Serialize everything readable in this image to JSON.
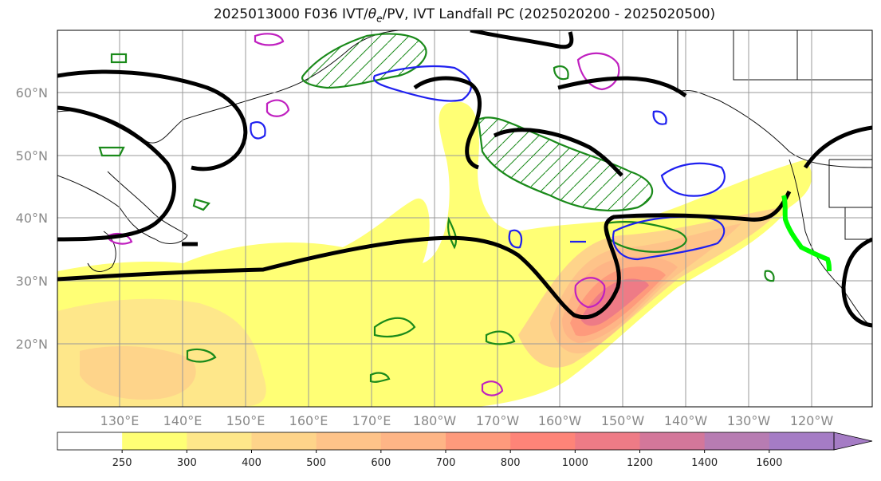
{
  "title": {
    "prefix": "2025013000 F036 IVT/",
    "theta": "θ",
    "theta_sub": "e",
    "suffix": "/PV, IVT Landfall PC (2025020200 - 2025020500)"
  },
  "map": {
    "lat_labels": [
      "60°N",
      "50°N",
      "40°N",
      "30°N",
      "20°N"
    ],
    "lon_labels": [
      "130°E",
      "140°E",
      "150°E",
      "160°E",
      "170°E",
      "180°W",
      "170°W",
      "160°W",
      "150°W",
      "140°W",
      "130°W",
      "120°W"
    ]
  },
  "colorbar": {
    "ticks": [
      "250",
      "300",
      "400",
      "500",
      "600",
      "700",
      "800",
      "1000",
      "1200",
      "1400",
      "1600"
    ],
    "colors": [
      "#ffffff",
      "#ffff75",
      "#fee78a",
      "#fed48a",
      "#fec389",
      "#feb586",
      "#fe9a7c",
      "#fe8478",
      "#ee7b86",
      "#d3779a",
      "#b77cb2",
      "#a57cc5"
    ]
  }
}
